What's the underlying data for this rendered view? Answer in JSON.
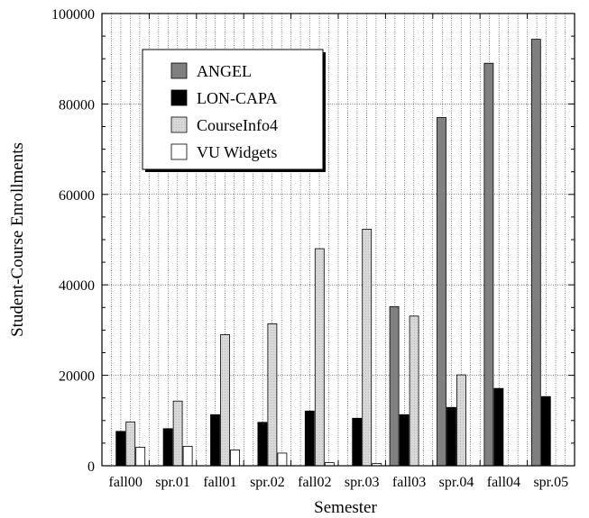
{
  "chart_data": {
    "type": "bar",
    "title": "",
    "xlabel": "Semester",
    "ylabel": "Student-Course Enrollments",
    "ylim": [
      0,
      100000
    ],
    "yticks": [
      0,
      20000,
      40000,
      60000,
      80000,
      100000
    ],
    "ytick_labels": [
      "0",
      "20000",
      "40000",
      "60000",
      "80000",
      "100000"
    ],
    "categories": [
      "fall00",
      "spr.01",
      "fall01",
      "spr.02",
      "fall02",
      "spr.03",
      "fall03",
      "spr.04",
      "fall04",
      "spr.05"
    ],
    "series": [
      {
        "name": "ANGEL",
        "color": "#808080",
        "values": [
          0,
          0,
          0,
          0,
          0,
          0,
          35200,
          77000,
          89000,
          94300
        ]
      },
      {
        "name": "LON-CAPA",
        "color": "#000000",
        "values": [
          7600,
          8200,
          11300,
          9600,
          12100,
          10500,
          11300,
          12900,
          17100,
          15300
        ]
      },
      {
        "name": "CourseInfo4",
        "color": "#d8d8d8",
        "values": [
          9700,
          14300,
          29000,
          31400,
          48000,
          52300,
          33100,
          20100,
          0,
          0
        ]
      },
      {
        "name": "VU Widgets",
        "color": "#ffffff",
        "values": [
          4100,
          4300,
          3500,
          2800,
          700,
          500,
          0,
          0,
          0,
          0
        ]
      }
    ],
    "grid": true,
    "legend_position": "top-left"
  }
}
